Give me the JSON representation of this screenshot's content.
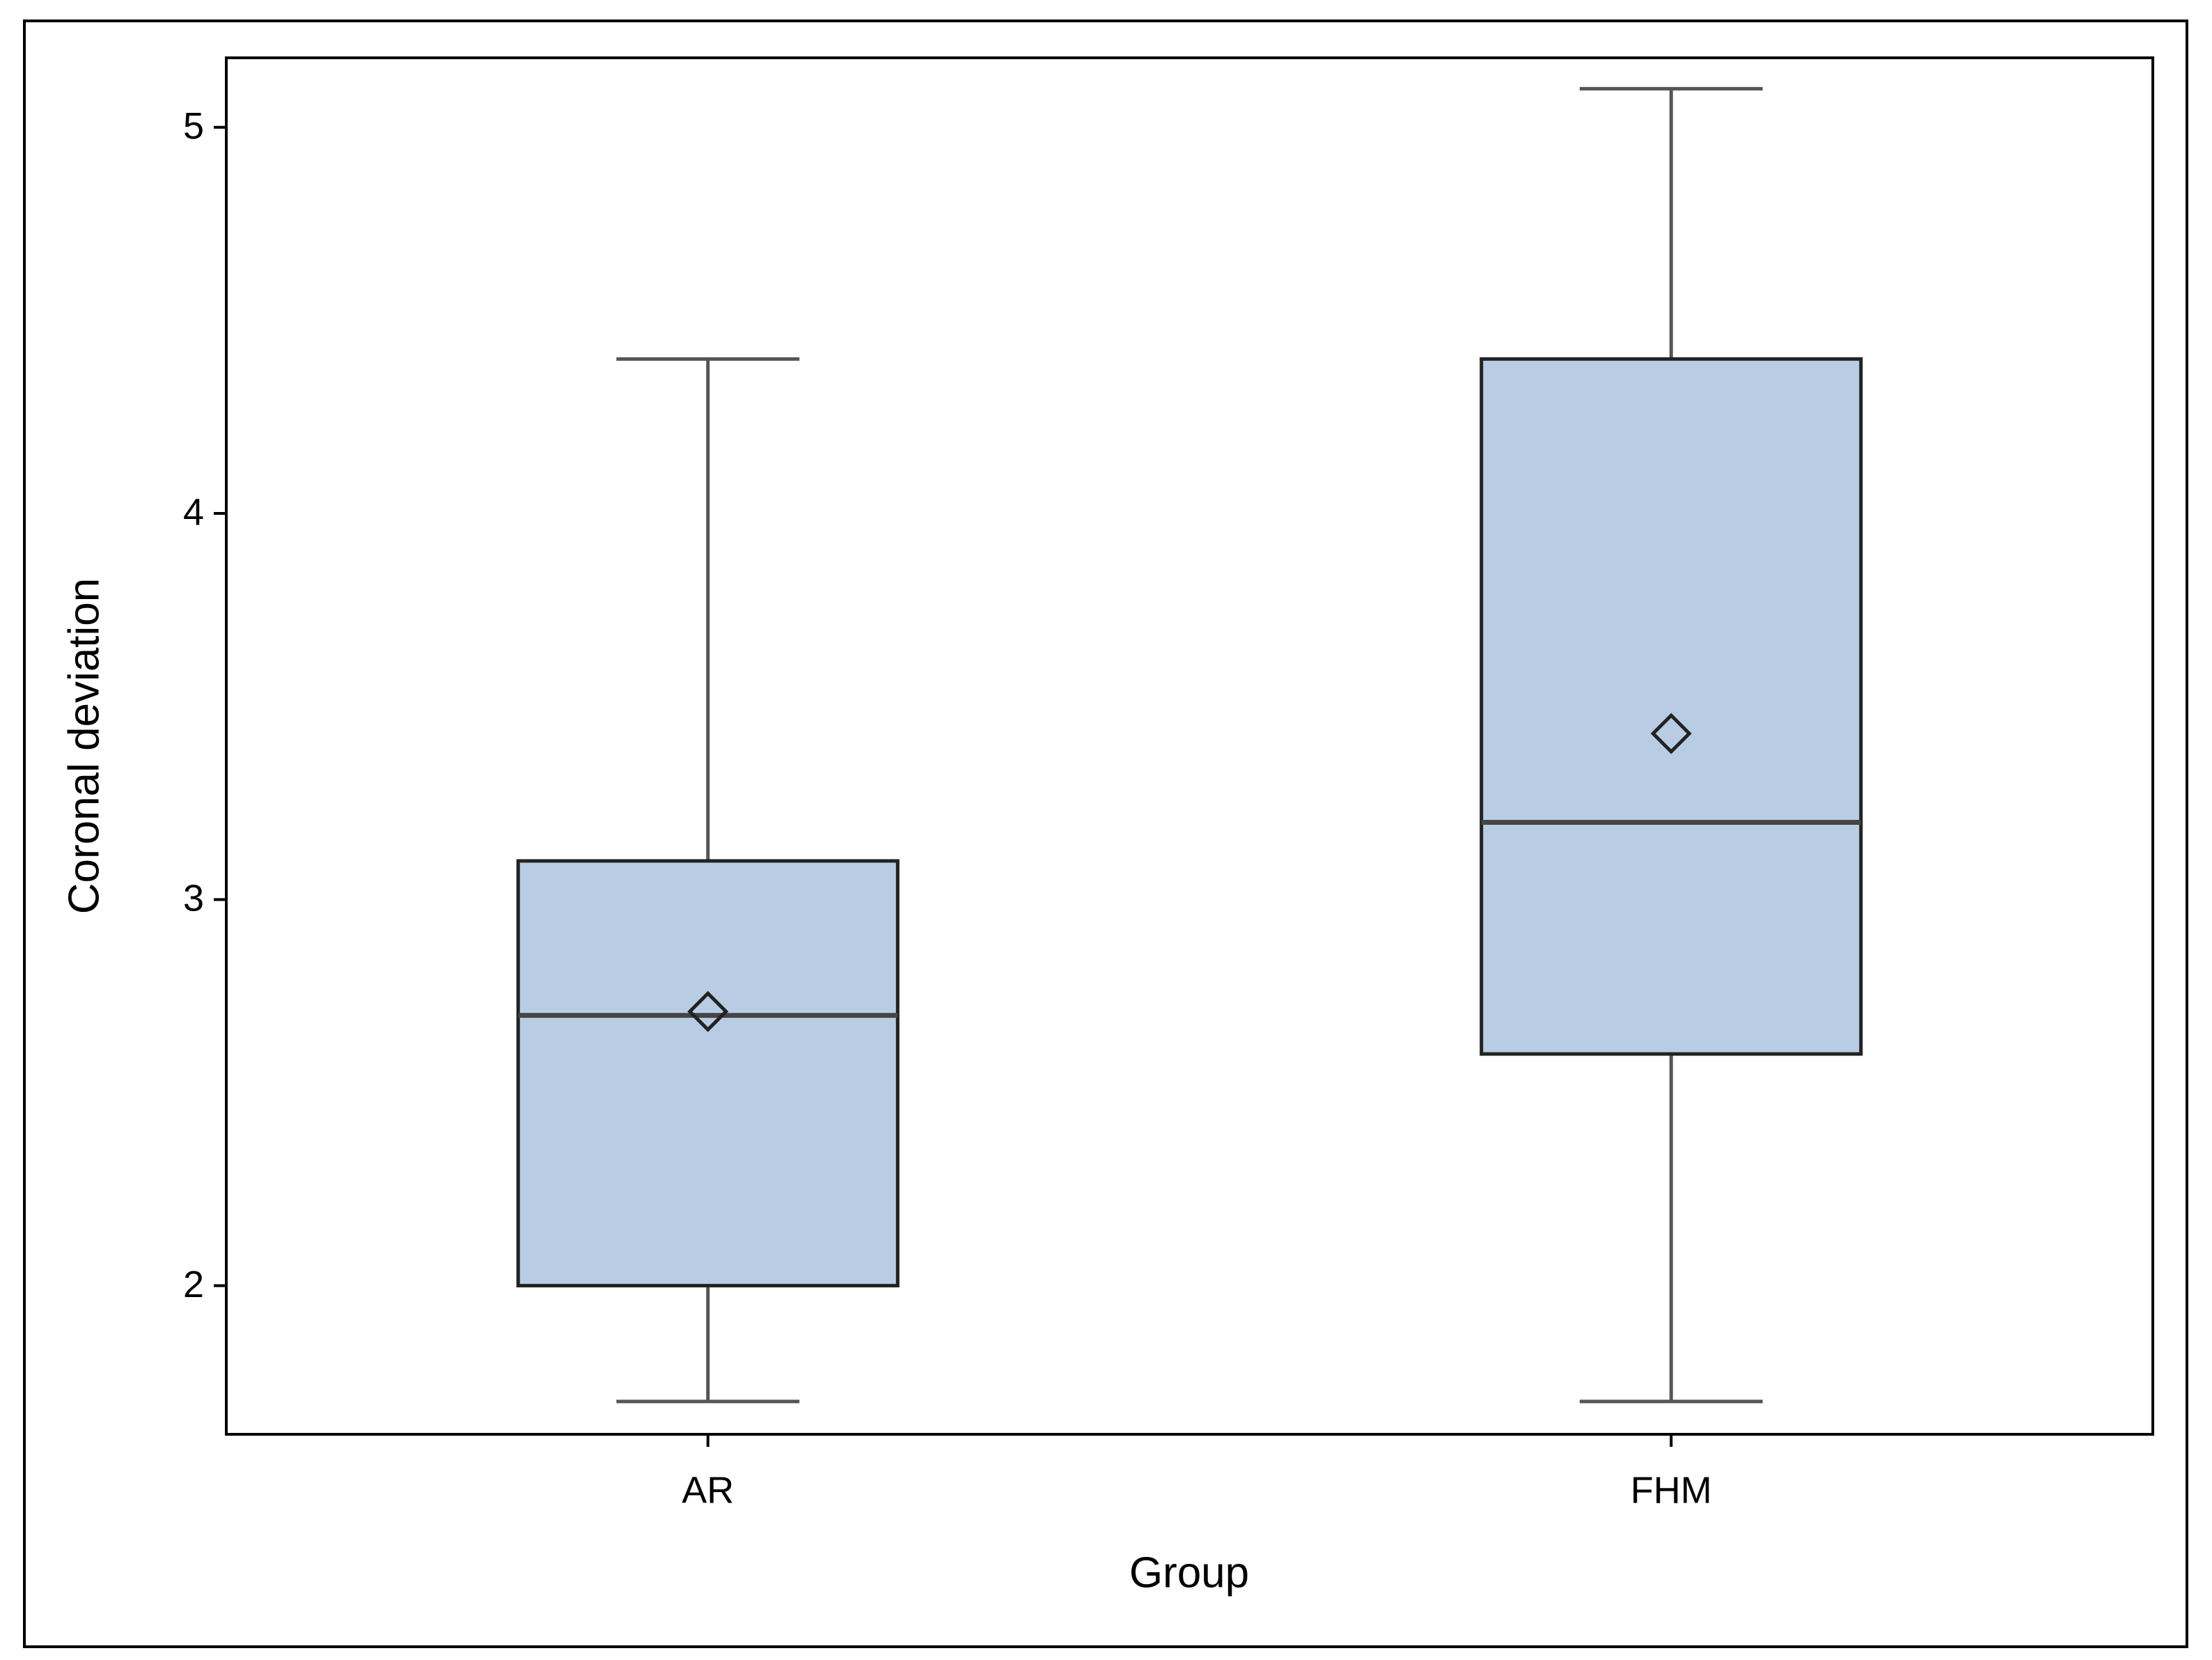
{
  "chart_data": {
    "type": "box",
    "x_label": "Group",
    "y_label": "Coronal deviation",
    "categories": [
      "AR",
      "FHM"
    ],
    "boxes": [
      {
        "min": 1.7,
        "q1": 2.0,
        "median": 2.7,
        "q3": 3.1,
        "max": 4.4,
        "mean": 2.71
      },
      {
        "min": 1.7,
        "q1": 2.6,
        "median": 3.2,
        "q3": 4.4,
        "max": 5.1,
        "mean": 3.43
      }
    ],
    "color": "#b8cce4",
    "ylim": [
      1.615,
      5.18
    ],
    "yticks": [
      2,
      3,
      4,
      5
    ]
  }
}
